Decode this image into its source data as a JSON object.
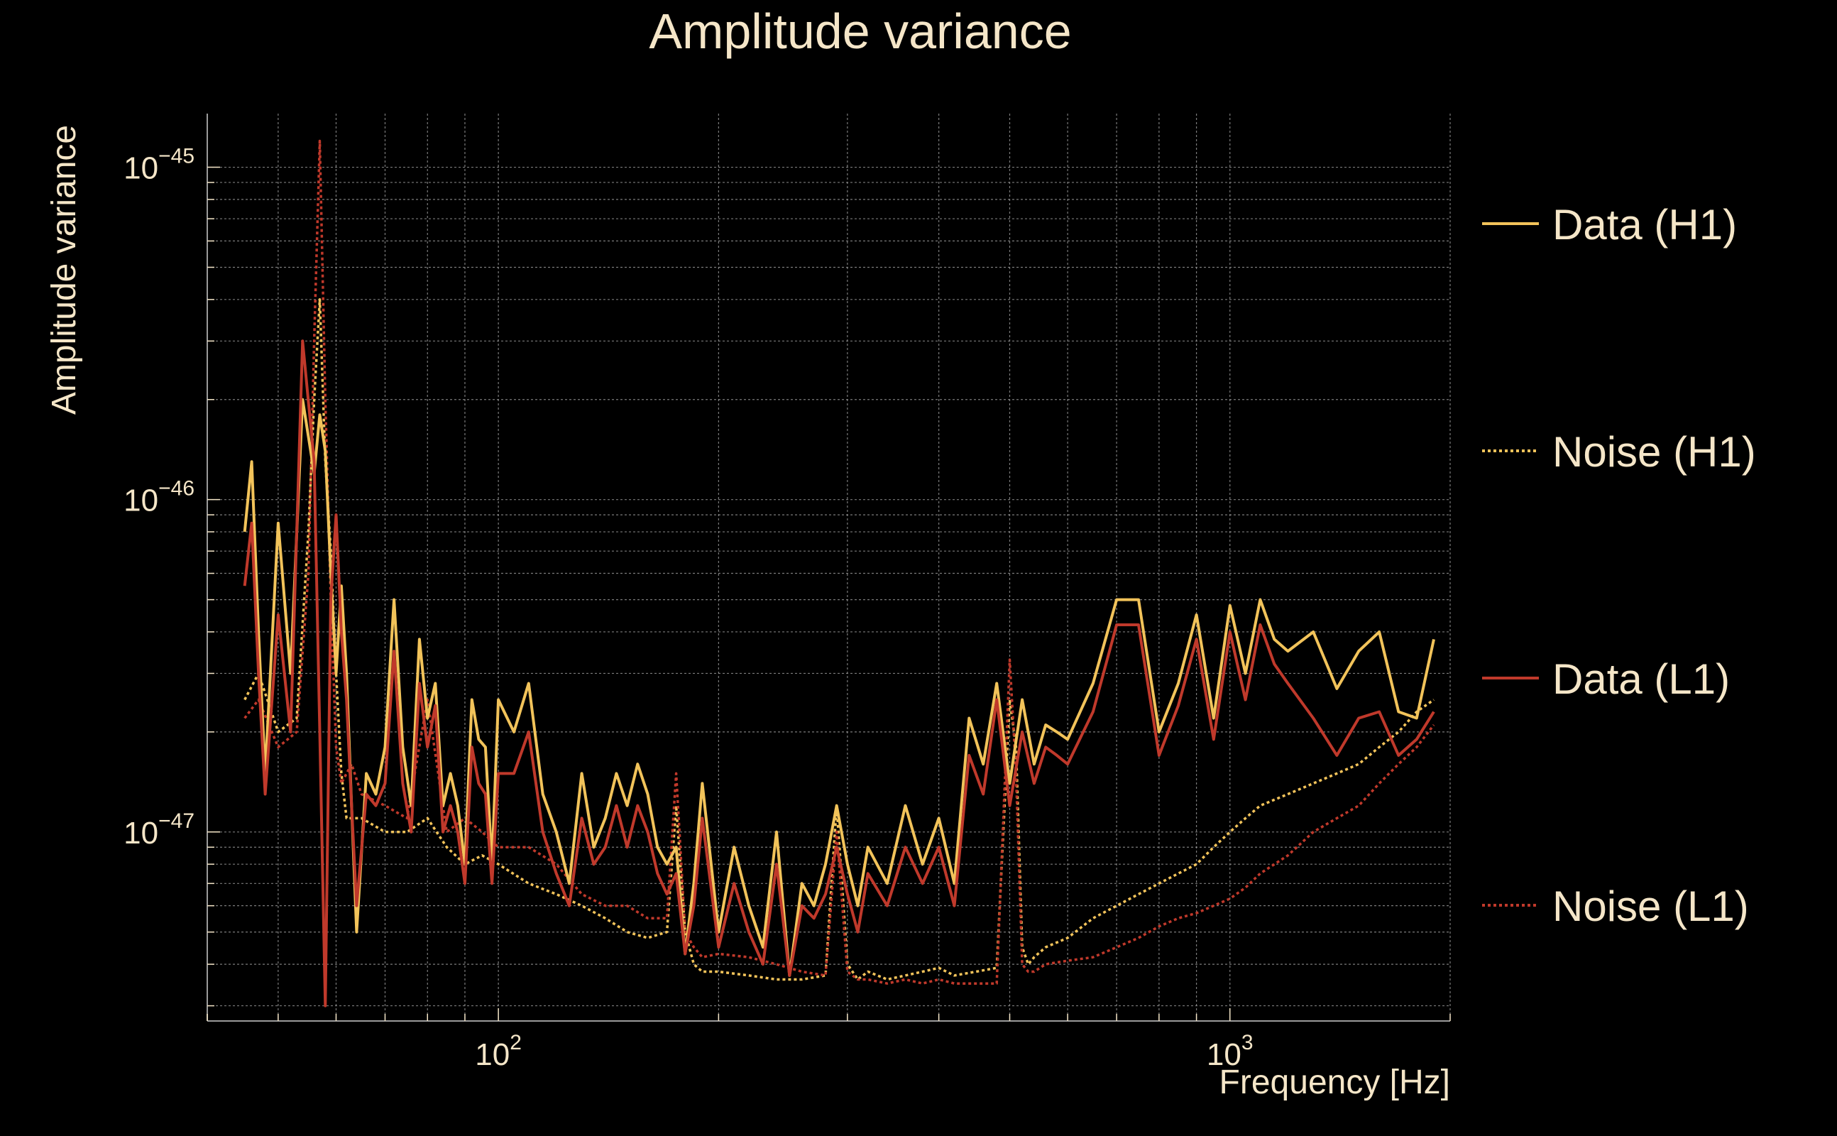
{
  "chart_data": {
    "type": "line",
    "title": "Amplitude variance",
    "xlabel": "Frequency [Hz]",
    "ylabel": "Amplitude variance",
    "x_scale": "log",
    "y_scale": "log",
    "xlim": [
      40,
      2000
    ],
    "ylim": [
      2.7e-48,
      1.45e-45
    ],
    "grid": true,
    "legend_position": "right",
    "x_ticks": [
      {
        "value": 100,
        "base": "10",
        "exp": "2"
      },
      {
        "value": 1000,
        "base": "10",
        "exp": "3"
      }
    ],
    "y_ticks": [
      {
        "value": 1e-45,
        "base": "10",
        "exp": "−45"
      },
      {
        "value": 1e-46,
        "base": "10",
        "exp": "−46"
      },
      {
        "value": 1e-47,
        "base": "10",
        "exp": "−47"
      }
    ],
    "colors": {
      "background": "#000000",
      "text": "#f5e6c8",
      "grid": "#9a9a9a",
      "h1": "#f2c35a",
      "l1": "#c0392b"
    },
    "series": [
      {
        "name": "Data (H1)",
        "color": "#f2c35a",
        "style": "solid",
        "x": [
          45,
          46,
          47,
          48,
          50,
          52,
          54,
          56,
          57,
          58,
          59,
          60,
          61,
          62,
          63,
          64,
          66,
          68,
          70,
          72,
          74,
          76,
          78,
          80,
          82,
          84,
          86,
          88,
          90,
          92,
          94,
          96,
          98,
          100,
          105,
          110,
          115,
          120,
          125,
          130,
          135,
          140,
          145,
          150,
          155,
          160,
          165,
          170,
          175,
          180,
          185,
          190,
          200,
          210,
          220,
          230,
          240,
          250,
          260,
          270,
          280,
          290,
          300,
          310,
          320,
          340,
          360,
          380,
          400,
          420,
          440,
          460,
          480,
          500,
          520,
          540,
          560,
          580,
          600,
          650,
          700,
          750,
          800,
          850,
          900,
          950,
          1000,
          1050,
          1100,
          1150,
          1200,
          1300,
          1400,
          1500,
          1600,
          1700,
          1800,
          1900
        ],
        "y": [
          8e-47,
          1.3e-46,
          4e-47,
          1.5e-47,
          8.5e-47,
          3e-47,
          2e-46,
          1.2e-46,
          1.8e-46,
          1.4e-46,
          6e-47,
          3e-47,
          5.5e-47,
          3e-47,
          1.2e-47,
          5e-48,
          1.5e-47,
          1.3e-47,
          1.8e-47,
          5e-47,
          1.8e-47,
          1.2e-47,
          3.8e-47,
          2.2e-47,
          2.8e-47,
          1.2e-47,
          1.5e-47,
          1.2e-47,
          8e-48,
          2.5e-47,
          1.9e-47,
          1.8e-47,
          8e-48,
          2.5e-47,
          2e-47,
          2.8e-47,
          1.3e-47,
          1e-47,
          7e-48,
          1.5e-47,
          9e-48,
          1.1e-47,
          1.5e-47,
          1.2e-47,
          1.6e-47,
          1.3e-47,
          9e-48,
          8e-48,
          9e-48,
          4.3e-48,
          7e-48,
          1.4e-47,
          5e-48,
          9e-48,
          6e-48,
          4.5e-48,
          1e-47,
          3.7e-48,
          7e-48,
          6e-48,
          8e-48,
          1.2e-47,
          8e-48,
          6e-48,
          9e-48,
          7e-48,
          1.2e-47,
          8e-48,
          1.1e-47,
          7e-48,
          2.2e-47,
          1.6e-47,
          2.8e-47,
          1.4e-47,
          2.5e-47,
          1.6e-47,
          2.1e-47,
          2e-47,
          1.9e-47,
          2.8e-47,
          5e-47,
          5e-47,
          2e-47,
          2.8e-47,
          4.5e-47,
          2.2e-47,
          4.8e-47,
          3e-47,
          5e-47,
          3.8e-47,
          3.5e-47,
          4e-47,
          2.7e-47,
          3.5e-47,
          4e-47,
          2.3e-47,
          2.2e-47,
          3.8e-47
        ]
      },
      {
        "name": "Noise (H1)",
        "color": "#f2c35a",
        "style": "dotted",
        "x": [
          45,
          47,
          50,
          53,
          55,
          56,
          57,
          58,
          59,
          60,
          61,
          62,
          63,
          65,
          70,
          75,
          80,
          85,
          90,
          95,
          100,
          110,
          120,
          130,
          140,
          150,
          160,
          170,
          175,
          180,
          185,
          190,
          200,
          220,
          240,
          260,
          280,
          290,
          300,
          310,
          320,
          340,
          360,
          380,
          400,
          420,
          450,
          480,
          500,
          510,
          520,
          530,
          540,
          560,
          600,
          650,
          700,
          750,
          800,
          850,
          900,
          950,
          1000,
          1050,
          1100,
          1200,
          1300,
          1400,
          1500,
          1600,
          1700,
          1800,
          1900
        ],
        "y": [
          2.5e-47,
          3e-47,
          2e-47,
          2.2e-47,
          8e-47,
          2e-46,
          4e-46,
          1.3e-46,
          7e-47,
          3e-47,
          1.5e-47,
          1.1e-47,
          1.1e-47,
          1.1e-47,
          1e-47,
          1e-47,
          1.1e-47,
          9e-48,
          8e-48,
          8.5e-48,
          8e-48,
          7e-48,
          6.5e-48,
          6e-48,
          5.5e-48,
          5e-48,
          4.8e-48,
          5e-48,
          1.2e-47,
          5e-48,
          4e-48,
          3.8e-48,
          3.8e-48,
          3.7e-48,
          3.6e-48,
          3.6e-48,
          3.7e-48,
          1.2e-47,
          4e-48,
          3.6e-48,
          3.8e-48,
          3.6e-48,
          3.7e-48,
          3.8e-48,
          3.9e-48,
          3.7e-48,
          3.8e-48,
          3.9e-48,
          2.5e-47,
          1.8e-47,
          4.5e-48,
          4e-48,
          4.2e-48,
          4.5e-48,
          4.8e-48,
          5.5e-48,
          6e-48,
          6.5e-48,
          7e-48,
          7.5e-48,
          8e-48,
          9e-48,
          1e-47,
          1.1e-47,
          1.2e-47,
          1.3e-47,
          1.4e-47,
          1.5e-47,
          1.6e-47,
          1.8e-47,
          2e-47,
          2.3e-47,
          2.5e-47
        ]
      },
      {
        "name": "Data (L1)",
        "color": "#c0392b",
        "style": "solid",
        "x": [
          45,
          46,
          47,
          48,
          50,
          52,
          54,
          56,
          57,
          58,
          59,
          60,
          61,
          62,
          63,
          64,
          66,
          68,
          70,
          72,
          74,
          76,
          78,
          80,
          82,
          84,
          86,
          88,
          90,
          92,
          94,
          96,
          98,
          100,
          105,
          110,
          115,
          120,
          125,
          130,
          135,
          140,
          145,
          150,
          155,
          160,
          165,
          170,
          175,
          180,
          185,
          190,
          200,
          210,
          220,
          230,
          240,
          250,
          260,
          270,
          280,
          290,
          300,
          310,
          320,
          340,
          360,
          380,
          400,
          420,
          440,
          460,
          480,
          500,
          520,
          540,
          560,
          580,
          600,
          650,
          700,
          750,
          800,
          850,
          900,
          950,
          1000,
          1050,
          1100,
          1150,
          1200,
          1300,
          1400,
          1500,
          1600,
          1700,
          1800,
          1900
        ],
        "y": [
          5.5e-47,
          8.5e-47,
          3e-47,
          1.3e-47,
          4.5e-47,
          2e-47,
          3e-46,
          1.3e-46,
          2e-47,
          3e-48,
          5e-47,
          9e-47,
          4e-47,
          2.5e-47,
          1.2e-47,
          6e-48,
          1.3e-47,
          1.2e-47,
          1.4e-47,
          3.5e-47,
          1.4e-47,
          1e-47,
          2.8e-47,
          1.8e-47,
          2.4e-47,
          1e-47,
          1.2e-47,
          1e-47,
          7e-48,
          1.8e-47,
          1.4e-47,
          1.3e-47,
          7e-48,
          1.5e-47,
          1.5e-47,
          2e-47,
          1e-47,
          7.5e-48,
          6e-48,
          1.1e-47,
          8e-48,
          9e-48,
          1.2e-47,
          9e-48,
          1.2e-47,
          1e-47,
          7.5e-48,
          6.5e-48,
          7.5e-48,
          4.3e-48,
          6e-48,
          1.1e-47,
          4.5e-48,
          7e-48,
          5e-48,
          4e-48,
          8e-48,
          3.7e-48,
          6e-48,
          5.5e-48,
          6.5e-48,
          9e-48,
          6.5e-48,
          5e-48,
          7.5e-48,
          6e-48,
          9e-48,
          7e-48,
          9e-48,
          6e-48,
          1.7e-47,
          1.3e-47,
          2.5e-47,
          1.2e-47,
          2e-47,
          1.4e-47,
          1.8e-47,
          1.7e-47,
          1.6e-47,
          2.3e-47,
          4.2e-47,
          4.2e-47,
          1.7e-47,
          2.4e-47,
          3.8e-47,
          1.9e-47,
          4e-47,
          2.5e-47,
          4.2e-47,
          3.2e-47,
          2.8e-47,
          2.2e-47,
          1.7e-47,
          2.2e-47,
          2.3e-47,
          1.7e-47,
          1.9e-47,
          2.3e-47
        ]
      },
      {
        "name": "Noise (L1)",
        "color": "#c0392b",
        "style": "dotted",
        "x": [
          45,
          47,
          50,
          53,
          55,
          56,
          57,
          58,
          59,
          60,
          61,
          62,
          63,
          65,
          70,
          75,
          80,
          85,
          90,
          95,
          100,
          110,
          120,
          130,
          140,
          150,
          160,
          170,
          175,
          180,
          185,
          190,
          200,
          220,
          240,
          260,
          280,
          290,
          300,
          310,
          320,
          340,
          360,
          380,
          400,
          420,
          450,
          480,
          500,
          510,
          520,
          530,
          540,
          560,
          600,
          650,
          700,
          750,
          800,
          850,
          900,
          950,
          1000,
          1050,
          1100,
          1200,
          1300,
          1400,
          1500,
          1600,
          1700,
          1800,
          1900
        ],
        "y": [
          2.2e-47,
          2.5e-47,
          1.8e-47,
          2e-47,
          6e-47,
          3e-46,
          1.2e-45,
          2e-46,
          5e-47,
          1.8e-47,
          1.4e-47,
          1.5e-47,
          1.6e-47,
          1.3e-47,
          1.2e-47,
          1.1e-47,
          2.5e-47,
          1e-47,
          1.1e-47,
          1e-47,
          9e-48,
          9e-48,
          8e-48,
          6.5e-48,
          6e-48,
          6e-48,
          5.5e-48,
          5.5e-48,
          1.5e-47,
          5e-48,
          4.5e-48,
          4.2e-48,
          4.3e-48,
          4.2e-48,
          4e-48,
          3.8e-48,
          3.7e-48,
          1e-47,
          3.8e-48,
          3.6e-48,
          3.6e-48,
          3.5e-48,
          3.6e-48,
          3.5e-48,
          3.6e-48,
          3.5e-48,
          3.5e-48,
          3.5e-48,
          3.3e-47,
          1.5e-47,
          4e-48,
          3.8e-48,
          3.8e-48,
          4e-48,
          4.1e-48,
          4.2e-48,
          4.5e-48,
          4.8e-48,
          5.2e-48,
          5.5e-48,
          5.7e-48,
          6e-48,
          6.3e-48,
          6.8e-48,
          7.5e-48,
          8.5e-48,
          1e-47,
          1.1e-47,
          1.2e-47,
          1.4e-47,
          1.6e-47,
          1.8e-47,
          2.1e-47
        ]
      }
    ]
  }
}
